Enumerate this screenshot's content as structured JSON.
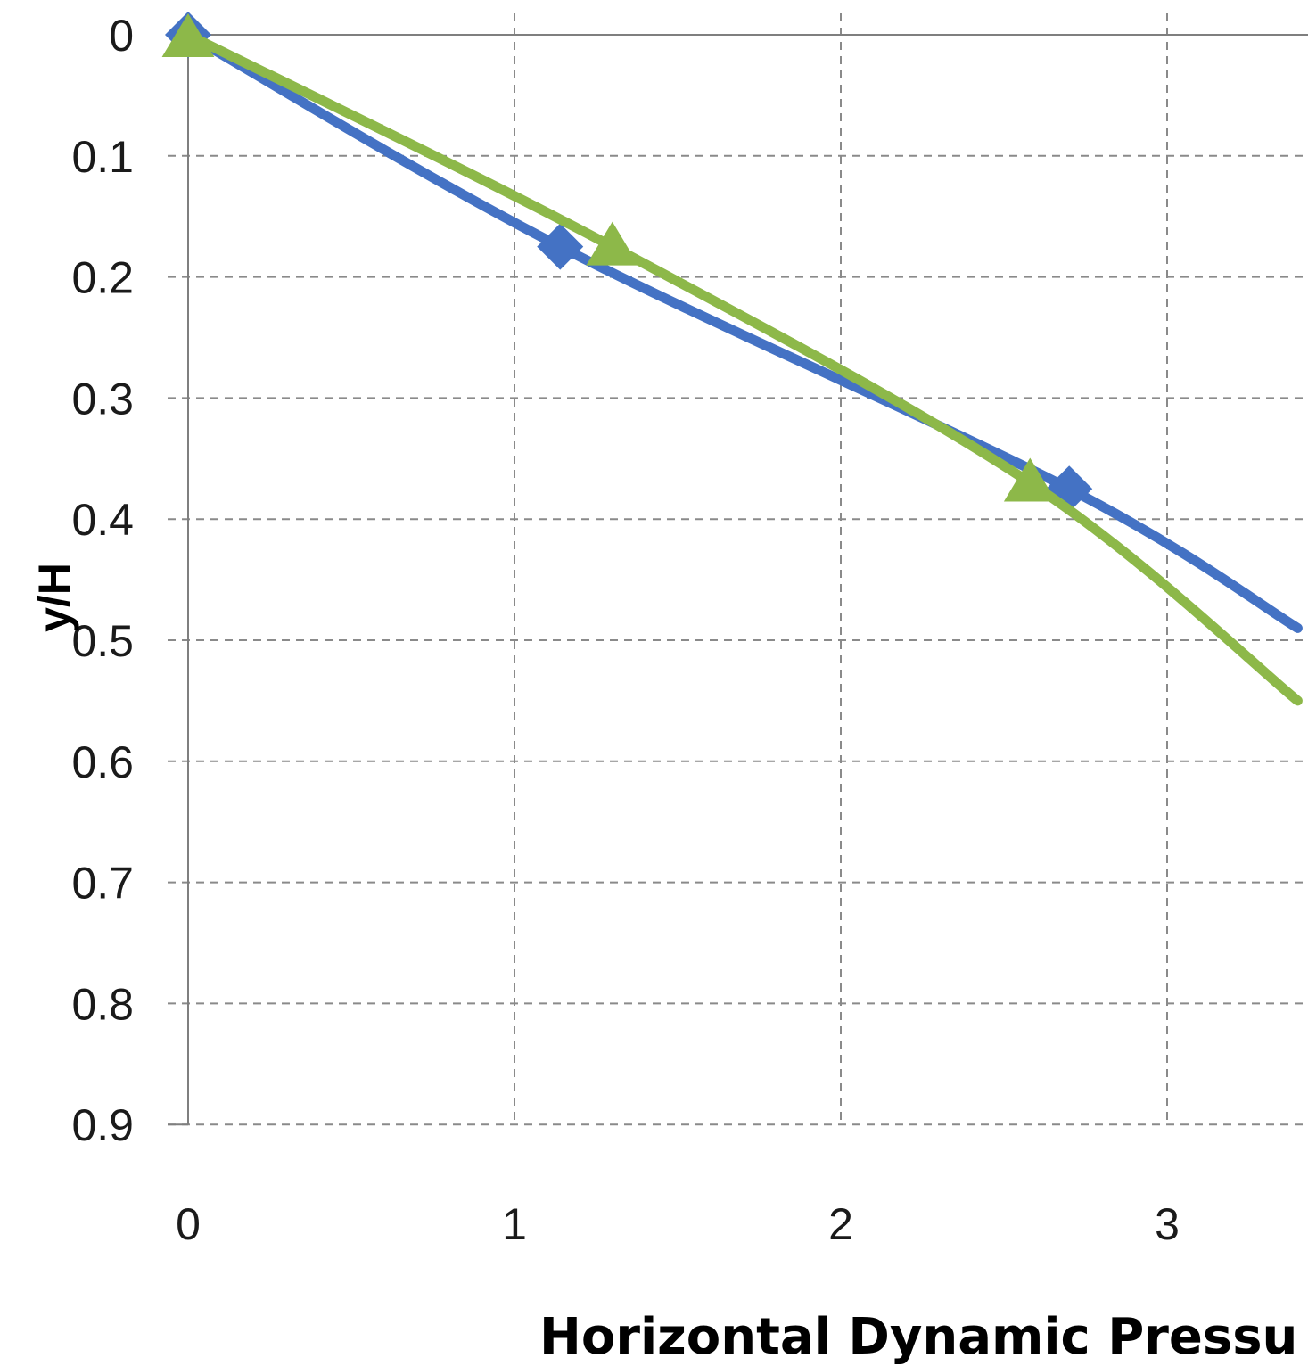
{
  "chart_data": {
    "type": "line",
    "xlabel": "Horizontal Dynamic Pressu",
    "ylabel": "y/H",
    "xlim": [
      0,
      3.4
    ],
    "ylim": [
      0,
      0.9
    ],
    "y_inverted": true,
    "x_ticks": [
      "0",
      "1",
      "2",
      "3"
    ],
    "y_ticks": [
      "0",
      "0.1",
      "0.2",
      "0.3",
      "0.4",
      "0.5",
      "0.6",
      "0.7",
      "0.8",
      "0.9"
    ],
    "grid": true,
    "legend": "none",
    "series": [
      {
        "marker": "diamond",
        "color": "#4472C4",
        "points": [
          [
            0,
            0
          ],
          [
            1.14,
            0.175
          ],
          [
            2.7,
            0.375
          ],
          [
            3.4,
            0.49
          ]
        ]
      },
      {
        "marker": "triangle",
        "color": "#8DB849",
        "points": [
          [
            0,
            0
          ],
          [
            1.3,
            0.175
          ],
          [
            2.58,
            0.37
          ],
          [
            3.4,
            0.55
          ]
        ]
      }
    ]
  }
}
